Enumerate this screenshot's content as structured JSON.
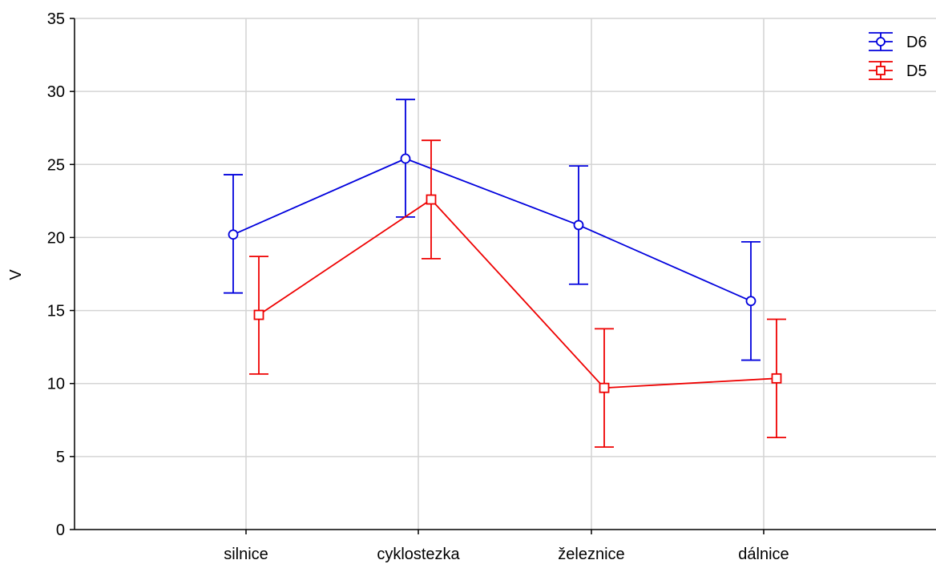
{
  "chart_data": {
    "type": "line",
    "title": "",
    "xlabel": "",
    "ylabel": "V",
    "ylim": [
      0,
      35
    ],
    "yticks": [
      0,
      5,
      10,
      15,
      20,
      25,
      30,
      35
    ],
    "categories": [
      "silnice",
      "cyklostezka",
      "železnice",
      "dálnice"
    ],
    "grid": true,
    "legend_position": "top-right",
    "error_bars": true,
    "series": [
      {
        "name": "D6",
        "color": "#0000dd",
        "marker": "circle",
        "values": [
          20.2,
          25.4,
          20.85,
          15.65
        ],
        "lower": [
          16.2,
          21.4,
          16.8,
          11.6
        ],
        "upper": [
          24.3,
          29.45,
          24.9,
          19.7
        ]
      },
      {
        "name": "D5",
        "color": "#ee0000",
        "marker": "square",
        "values": [
          14.7,
          22.6,
          9.7,
          10.35
        ],
        "lower": [
          10.65,
          18.55,
          5.65,
          6.3
        ],
        "upper": [
          18.7,
          26.65,
          13.75,
          14.4
        ]
      }
    ]
  }
}
